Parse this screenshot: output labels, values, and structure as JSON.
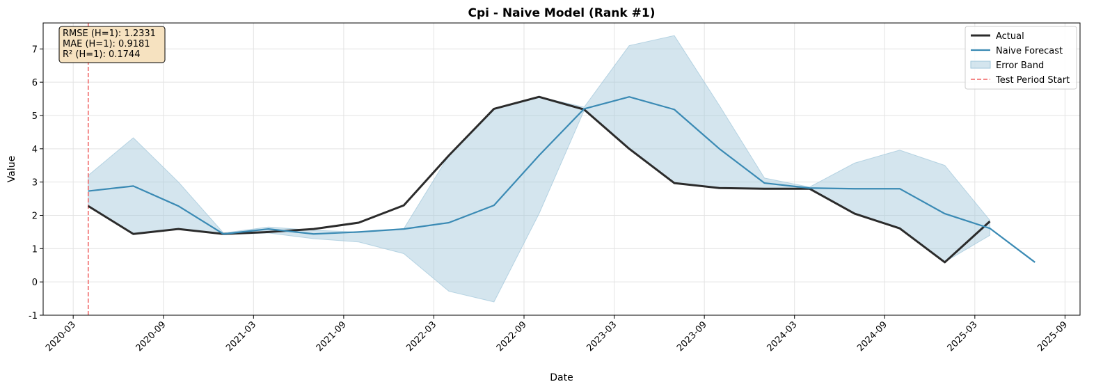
{
  "chart_data": {
    "type": "line",
    "title": "Cpi - Naive Model (Rank #1)",
    "x_label": "Date",
    "y_label": "Value",
    "x": [
      "2020-04",
      "2020-07",
      "2020-10",
      "2021-01",
      "2021-04",
      "2021-07",
      "2021-10",
      "2022-01",
      "2022-04",
      "2022-07",
      "2022-10",
      "2023-01",
      "2023-04",
      "2023-07",
      "2023-10",
      "2024-01",
      "2024-04",
      "2024-07",
      "2024-10",
      "2025-01",
      "2025-04",
      "2025-07"
    ],
    "series": [
      {
        "name": "Actual",
        "color": "#2b2b2b",
        "values": [
          2.28,
          1.44,
          1.59,
          1.44,
          1.5,
          1.59,
          1.78,
          2.3,
          3.8,
          5.2,
          5.56,
          5.18,
          4.0,
          2.97,
          2.82,
          2.8,
          2.8,
          2.05,
          1.61,
          0.59,
          1.82,
          null
        ]
      },
      {
        "name": "Naive Forecast",
        "color": "#3a8ab4",
        "values": [
          2.73,
          2.88,
          2.28,
          1.44,
          1.59,
          1.44,
          1.5,
          1.59,
          1.78,
          2.3,
          3.8,
          5.2,
          5.56,
          5.18,
          4.0,
          2.97,
          2.82,
          2.8,
          2.8,
          2.05,
          1.61,
          0.59
        ]
      }
    ],
    "band": {
      "name": "Error Band",
      "color": "#9fc6da",
      "upper": [
        3.2,
        4.33,
        3.0,
        1.47,
        1.65,
        1.55,
        1.5,
        1.6,
        3.8,
        5.2,
        5.56,
        5.25,
        7.1,
        7.4,
        5.3,
        3.12,
        2.85,
        3.57,
        3.96,
        3.5,
        1.85,
        null
      ],
      "lower": [
        2.28,
        1.44,
        1.59,
        1.42,
        1.47,
        1.3,
        1.2,
        0.85,
        -0.28,
        -0.6,
        2.05,
        5.15,
        4.0,
        2.97,
        2.82,
        2.8,
        2.78,
        2.05,
        1.61,
        0.6,
        1.4,
        null
      ]
    },
    "test_line": {
      "name": "Test Period Start",
      "color": "#f06060",
      "x": "2020-04"
    },
    "annotation": [
      "RMSE (H=1): 1.2331",
      "MAE (H=1): 0.9181",
      "R² (H=1): 0.1744"
    ],
    "xlim": [
      "2020-01",
      "2025-10"
    ],
    "xticks": [
      "2020-03",
      "2020-09",
      "2021-03",
      "2021-09",
      "2022-03",
      "2022-09",
      "2023-03",
      "2023-09",
      "2024-03",
      "2024-09",
      "2025-03",
      "2025-09"
    ],
    "ylim": [
      -1,
      7.78
    ],
    "yticks": [
      -1,
      0,
      1,
      2,
      3,
      4,
      5,
      6,
      7
    ],
    "grid": true,
    "legend": "upper right"
  }
}
